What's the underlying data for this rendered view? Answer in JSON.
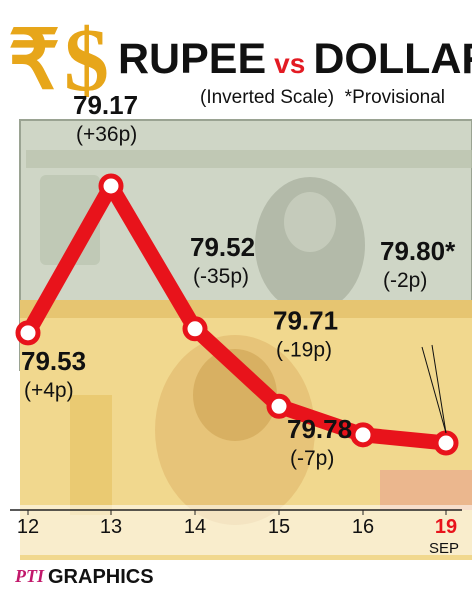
{
  "header": {
    "rupee_symbol": "₹",
    "dollar_symbol": "$",
    "title_part1": "RUPEE",
    "title_vs": "vs",
    "title_part2": "DOLLAR",
    "subtitle": "(Inverted Scale)  *Provisional"
  },
  "colors": {
    "line": "#e8131b",
    "symbol_gold": "#e7a61a",
    "vs_red": "#e31b23",
    "title_black": "#111111",
    "dollar_note": "#c9d1c1",
    "rupee_note": "#f3d27a"
  },
  "chart_data": {
    "type": "line",
    "y_scale": "inverted",
    "x": [
      "12",
      "13",
      "14",
      "15",
      "16",
      "19"
    ],
    "x_sublabel_last": "SEP",
    "series": [
      {
        "values": [
          79.53,
          79.17,
          79.52,
          79.71,
          79.78,
          79.8
        ]
      }
    ],
    "value_labels": [
      "79.53",
      "79.17",
      "79.52",
      "79.71",
      "79.78",
      "79.80*"
    ],
    "change_labels": [
      "(+4p)",
      "(+36p)",
      "(-35p)",
      "(-19p)",
      "(-7p)",
      "(-2p)"
    ],
    "provisional_index": 5
  },
  "footer": {
    "logo_text": "PTI",
    "label": "GRAPHICS"
  }
}
